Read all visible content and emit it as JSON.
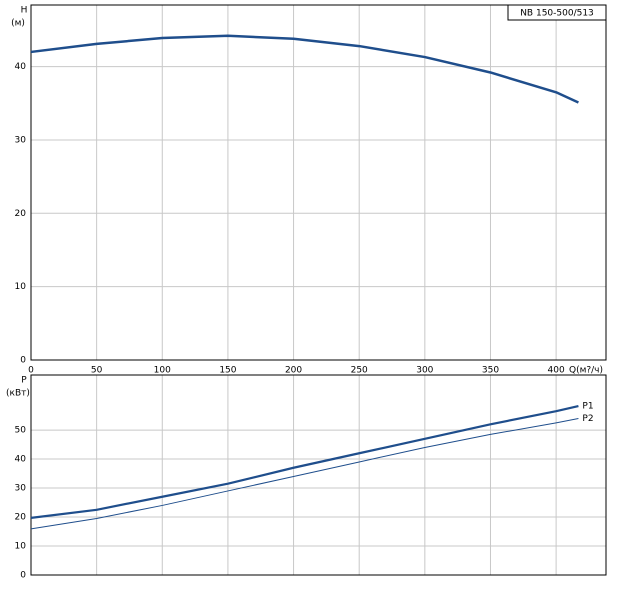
{
  "chart_data": [
    {
      "type": "line",
      "title": "NB 150-500/513",
      "ylabel": "H",
      "yunit": "(м)",
      "xlabel": "Q(м?/ч)",
      "x": [
        0,
        50,
        100,
        150,
        200,
        250,
        300,
        350,
        400,
        417
      ],
      "series": [
        {
          "name": "H",
          "color": "#1f4e8c",
          "line_width": 2.5,
          "values": [
            42,
            43.1,
            43.9,
            44.2,
            43.8,
            42.8,
            41.3,
            39.2,
            36.5,
            35.1
          ]
        }
      ],
      "xlim": [
        0,
        438
      ],
      "xticks": [
        0,
        50,
        100,
        150,
        200,
        250,
        300,
        350,
        400
      ],
      "ylim": [
        0,
        48.4
      ],
      "yticks": [
        0,
        10,
        20,
        30,
        40
      ],
      "grid": true
    },
    {
      "type": "line",
      "ylabel": "P",
      "yunit": "(кВт)",
      "x": [
        0,
        50,
        100,
        150,
        200,
        250,
        300,
        350,
        400,
        417
      ],
      "series": [
        {
          "name": "P1",
          "color": "#1f4e8c",
          "line_width": 2.2,
          "values": [
            19.7,
            22.5,
            27,
            31.5,
            37,
            42,
            47,
            52,
            56.5,
            58.3
          ]
        },
        {
          "name": "P2",
          "color": "#1f4e8c",
          "line_width": 1,
          "values": [
            15.9,
            19.5,
            24,
            29,
            34,
            39,
            44,
            48.5,
            52.5,
            54
          ]
        }
      ],
      "xlim": [
        0,
        438
      ],
      "ylim": [
        0,
        69
      ],
      "yticks": [
        0,
        10,
        20,
        30,
        40,
        50
      ],
      "grid": true
    }
  ]
}
